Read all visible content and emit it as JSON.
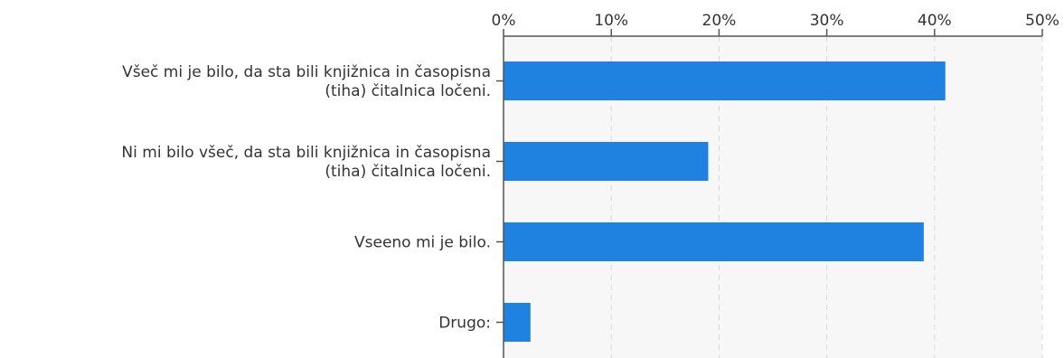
{
  "chart_data": {
    "type": "bar",
    "orientation": "horizontal",
    "x_ticks": [
      "0%",
      "10%",
      "20%",
      "30%",
      "40%",
      "50%"
    ],
    "xlim": [
      0,
      50
    ],
    "categories": [
      [
        "Všeč mi je bilo, da sta bili knjižnica in časopisna",
        "(tiha) čitalnica ločeni."
      ],
      [
        "Ni mi bilo všeč, da sta bili knjižnica in časopisna",
        "(tiha) čitalnica ločeni."
      ],
      [
        "Vseeno mi je bilo."
      ],
      [
        "Drugo:"
      ]
    ],
    "values": [
      41,
      19,
      39,
      2.5
    ],
    "bar_color": "#1f82e0",
    "plot_background": "#f7f7f7",
    "grid": true,
    "axis_position": "top"
  }
}
